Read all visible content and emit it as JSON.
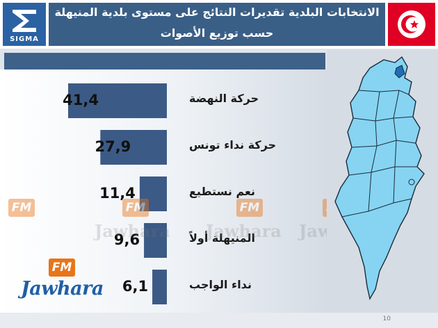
{
  "header": {
    "logo_text": "SIGMA",
    "title_line1": "الانتخابات البلدية تقديرات النتائج على مستوى بلدية المنيهلة",
    "title_line2": "حسب توزيع الأصوات"
  },
  "branding": {
    "fm_label": "FM",
    "watermark": "Jawhara",
    "logo_word": "Jawhara"
  },
  "footer": {
    "page_number": "10"
  },
  "colors": {
    "bar": "#3c5a86",
    "header": "#3a5f87",
    "flag_red": "#e00024",
    "map_fill": "#86d4f2",
    "map_highlight": "#1d6fb5"
  },
  "chart_data": {
    "type": "bar",
    "orientation": "horizontal",
    "categories": [
      "حركة النهضة",
      "حركة نداء تونس",
      "نعم نستطيع",
      "المنيهلة أولاً",
      "نداء الواجب"
    ],
    "values": [
      41.4,
      27.9,
      11.4,
      9.6,
      6.1
    ],
    "value_labels": [
      "41,4",
      "27,9",
      "11,4",
      "9,6",
      "6,1"
    ],
    "xlim": [
      0,
      41.4
    ],
    "grid": false,
    "legend": "none"
  }
}
